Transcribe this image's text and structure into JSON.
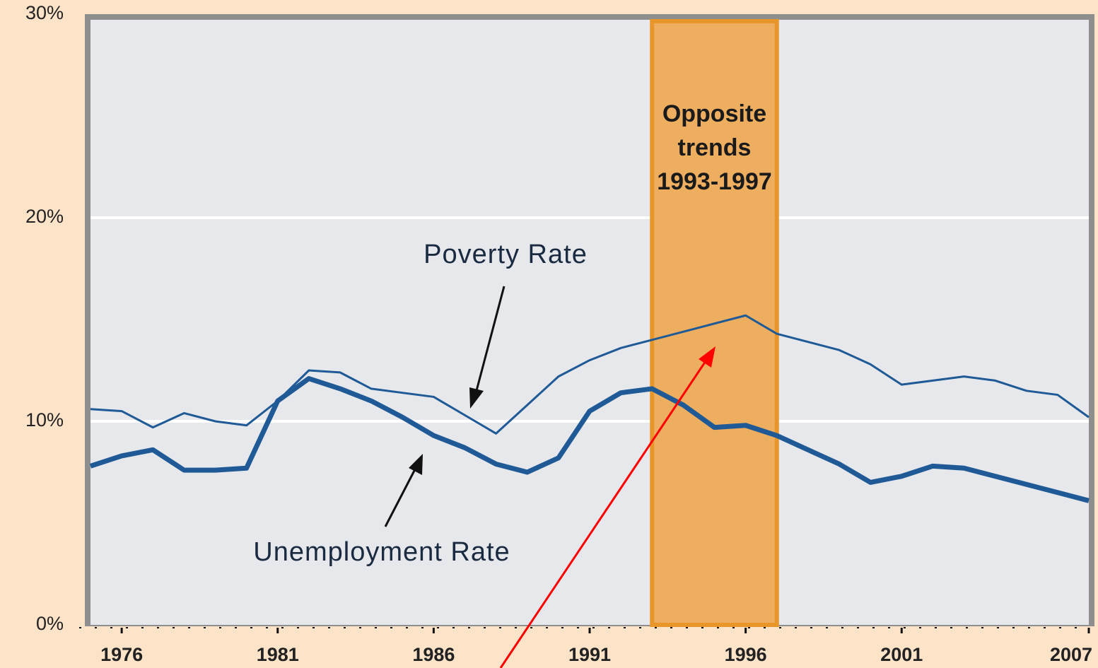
{
  "chart_data": {
    "type": "line",
    "x": [
      1975,
      1976,
      1977,
      1978,
      1979,
      1980,
      1981,
      1982,
      1983,
      1984,
      1985,
      1986,
      1987,
      1988,
      1989,
      1990,
      1991,
      1992,
      1993,
      1994,
      1995,
      1996,
      1997,
      1998,
      1999,
      2000,
      2001,
      2002,
      2003,
      2004,
      2005,
      2006,
      2007
    ],
    "series": [
      {
        "name": "Poverty Rate",
        "color": "#1f5a96",
        "width": 3,
        "values": [
          10.6,
          10.5,
          9.7,
          10.4,
          10.0,
          9.8,
          11.0,
          12.5,
          12.4,
          11.6,
          11.4,
          11.2,
          10.3,
          9.4,
          10.8,
          12.2,
          13.0,
          13.6,
          14.0,
          14.4,
          14.8,
          15.2,
          14.3,
          13.9,
          13.5,
          12.8,
          11.8,
          12.0,
          12.2,
          12.0,
          11.5,
          11.3,
          10.2
        ]
      },
      {
        "name": "Unemployment Rate",
        "color": "#1f5a96",
        "width": 7,
        "values": [
          7.8,
          8.3,
          8.6,
          7.6,
          7.6,
          7.7,
          11.0,
          12.1,
          11.6,
          11.0,
          10.2,
          9.3,
          8.7,
          7.9,
          7.5,
          8.2,
          10.5,
          11.4,
          11.6,
          10.8,
          9.7,
          9.8,
          9.3,
          8.6,
          7.9,
          7.0,
          7.3,
          7.8,
          7.7,
          7.3,
          6.9,
          6.5,
          6.1
        ]
      }
    ],
    "xlim": [
      1975,
      2007
    ],
    "xticks": [
      1976,
      1981,
      1986,
      1991,
      1996,
      2001,
      2007
    ],
    "ylim": [
      0,
      30
    ],
    "yticks": [
      {
        "value": 0,
        "label": "0%"
      },
      {
        "value": 10,
        "label": "10%"
      },
      {
        "value": 20,
        "label": "20%"
      },
      {
        "value": 30,
        "label": "30%"
      }
    ],
    "grid": true,
    "highlight": {
      "range": [
        1993,
        1997
      ],
      "lines": [
        "Opposite",
        "trends",
        "1993-1997"
      ],
      "color": "#eeae60"
    }
  }
}
